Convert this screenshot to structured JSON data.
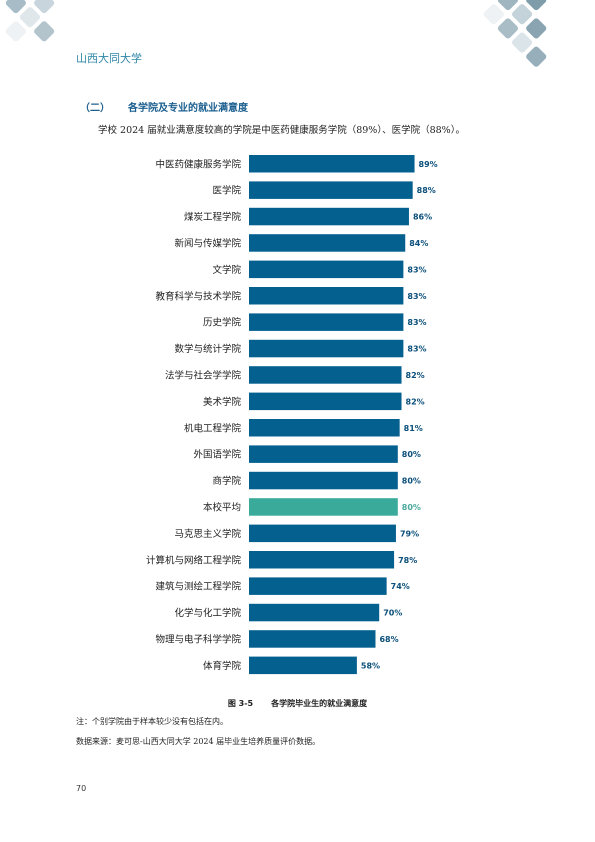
{
  "header": {
    "school_name": "山西大同大学"
  },
  "section": {
    "number": "（二）",
    "title": "各学院及专业的就业满意度",
    "intro": "学校 2024 届就业满意度较高的学院是中医药健康服务学院（89%）、医学院（88%）。"
  },
  "colors": {
    "bar": "#04608f",
    "highlight": "#3aab9a",
    "label_text": "#0b4f7a",
    "highlight_label": "#4aa99c"
  },
  "chart_data": {
    "type": "bar",
    "orientation": "horizontal",
    "categories": [
      "中医药健康服务学院",
      "医学院",
      "煤炭工程学院",
      "新闻与传媒学院",
      "文学院",
      "教育科学与技术学院",
      "历史学院",
      "数学与统计学院",
      "法学与社会学学院",
      "美术学院",
      "机电工程学院",
      "外国语学院",
      "商学院",
      "本校平均",
      "马克思主义学院",
      "计算机与网络工程学院",
      "建筑与测绘工程学院",
      "化学与化工学院",
      "物理与电子科学学院",
      "体育学院"
    ],
    "values": [
      89,
      88,
      86,
      84,
      83,
      83,
      83,
      83,
      82,
      82,
      81,
      80,
      80,
      80,
      79,
      78,
      74,
      70,
      68,
      58
    ],
    "value_labels": [
      "89%",
      "88%",
      "86%",
      "84%",
      "83%",
      "83%",
      "83%",
      "83%",
      "82%",
      "82%",
      "81%",
      "80%",
      "80%",
      "80%",
      "79%",
      "78%",
      "74%",
      "70%",
      "68%",
      "58%"
    ],
    "highlight_category": "本校平均",
    "xlim": [
      0,
      100
    ],
    "grid": false,
    "legend": "none"
  },
  "figure": {
    "number": "图 3-5",
    "caption": "各学院毕业生的就业满意度"
  },
  "notes": {
    "note": "注：个别学院由于样本较少没有包括在内。",
    "source": "数据来源：麦可思-山西大同大学 2024 届毕业生培养质量评价数据。"
  },
  "page_number": "70"
}
